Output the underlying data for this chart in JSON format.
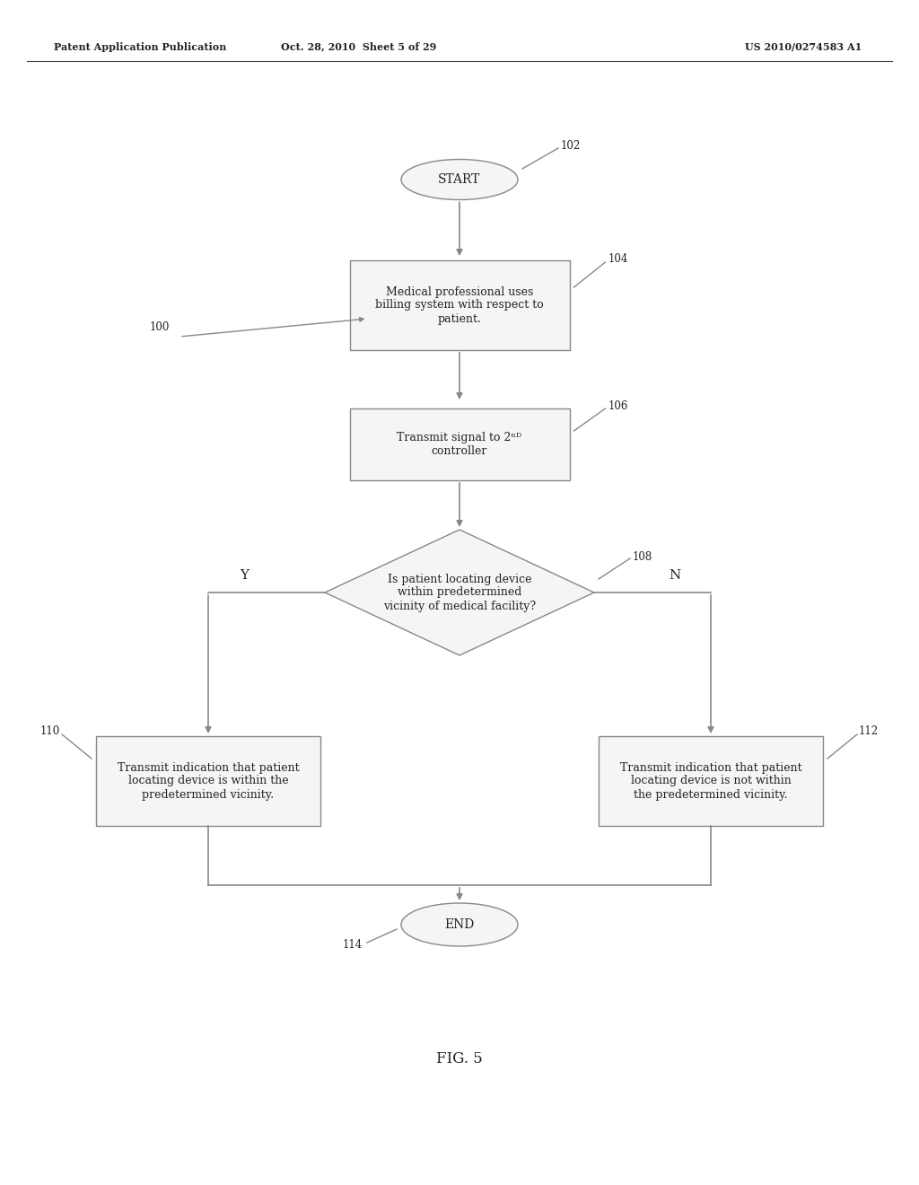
{
  "bg_color": "#ffffff",
  "header_left": "Patent Application Publication",
  "header_mid": "Oct. 28, 2010  Sheet 5 of 29",
  "header_right": "US 2010/0274583 A1",
  "fig_label": "FIG. 5",
  "start_label": "START",
  "start_ref": "102",
  "box1_label": "Medical professional uses\nbilling system with respect to\npatient.",
  "box1_ref": "104",
  "box2_label": "Transmit signal to 2",
  "box2_sup": "nd",
  "box2_sub": "controller",
  "box2_ref": "106",
  "diamond_label": "Is patient locating device\nwithin predetermined\nvicinity of medical facility?",
  "diamond_ref": "108",
  "box_yes_label": "Transmit indication that patient\nlocating device is within the\npredetermined vicinity.",
  "box_yes_ref": "110",
  "box_no_label": "Transmit indication that patient\nlocating device is not within\nthe predetermined vicinity.",
  "box_no_ref": "112",
  "end_label": "END",
  "end_ref": "114",
  "ref100": "100",
  "line_color": "#888888",
  "fill_color": "#f5f5f5",
  "text_color": "#222222",
  "border_color": "#888888",
  "font_size": 9.0,
  "ref_font_size": 8.5,
  "header_font_size": 8.0
}
